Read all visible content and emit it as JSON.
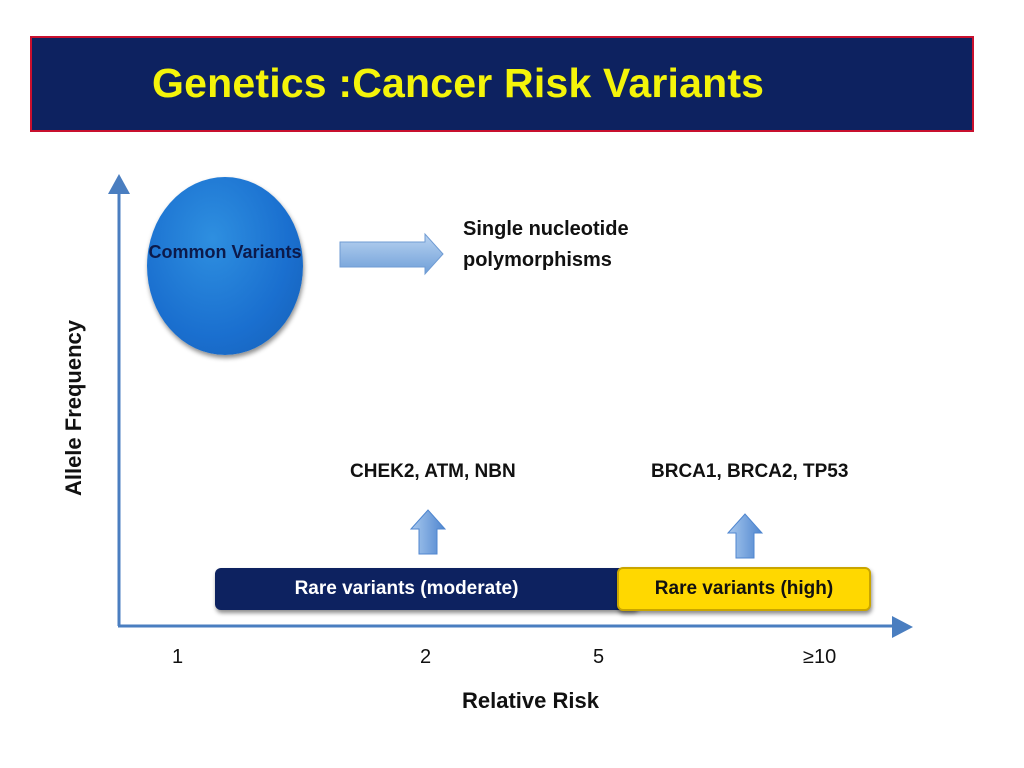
{
  "title": "Genetics :Cancer Risk Variants",
  "axes": {
    "y_label": "Allele Frequency",
    "x_label": "Relative Risk",
    "x_ticks": [
      "1",
      "2",
      "5",
      "≥10"
    ]
  },
  "common_variants": {
    "label": "Common Variants",
    "description": "Single nucleotide polymorphisms"
  },
  "moderate": {
    "genes": "CHEK2, ATM, NBN",
    "bar_label": "Rare variants (moderate)"
  },
  "high": {
    "genes": "BRCA1, BRCA2, TP53",
    "bar_label": "Rare variants (high)"
  },
  "colors": {
    "banner": "#0d2260",
    "banner_border": "#c8102e",
    "title_text": "#f4f40a",
    "axis": "#4a7ec0",
    "bubble": "#1a6fcf",
    "moderate_bar": "#0d2260",
    "high_bar": "#ffd800"
  }
}
